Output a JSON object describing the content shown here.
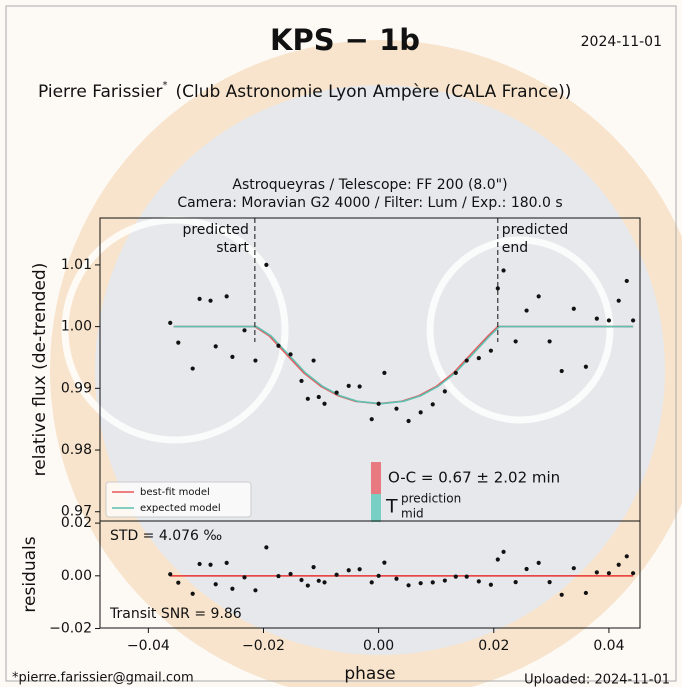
{
  "header": {
    "title": "KPS − 1b",
    "date": "2024-11-01",
    "author": "Pierre Farissier",
    "author_mark": "*",
    "affiliation": "(Club Astronomie Lyon Ampère (CALA France))",
    "observatory": "Astroqueyras / Telescope: FF 200 (8.0\")",
    "camera": "Camera: Moravian G2 4000 / Filter: Lum / Exp.: 180.0 s"
  },
  "chart_data": [
    {
      "type": "scatter",
      "ylabel": "relative flux (de-trended)",
      "color": "#111111",
      "xlim": [
        -0.0484,
        0.0454
      ],
      "ylim": [
        0.9685,
        1.0176
      ],
      "yticks": [
        0.97,
        0.98,
        0.99,
        {
          "value": 1.0,
          "label": "1.00"
        },
        1.01
      ],
      "x": [
        -0.0362,
        -0.0348,
        -0.0323,
        -0.0311,
        -0.0292,
        -0.0283,
        -0.0264,
        -0.0254,
        -0.0233,
        -0.0214,
        -0.0195,
        -0.0174,
        -0.0153,
        -0.0134,
        -0.0123,
        -0.0113,
        -0.0104,
        -0.0094,
        -0.0073,
        -0.0052,
        -0.0033,
        -0.0012,
        0.0,
        0.001,
        0.0031,
        0.0052,
        0.0073,
        0.0094,
        0.0115,
        0.0134,
        0.0153,
        0.0174,
        0.0195,
        0.0207,
        0.0217,
        0.0238,
        0.0257,
        0.0278,
        0.0297,
        0.0318,
        0.0339,
        0.036,
        0.0379,
        0.04,
        0.0417,
        0.0431,
        0.0442
      ],
      "values": [
        1.0006,
        0.9974,
        0.9932,
        1.0045,
        1.0042,
        0.9968,
        1.0049,
        0.9951,
        0.9994,
        0.9945,
        1.01,
        0.9969,
        0.9955,
        0.9912,
        0.9883,
        0.9945,
        0.9886,
        0.9875,
        0.9893,
        0.9904,
        0.9903,
        0.985,
        0.9875,
        0.9925,
        0.9867,
        0.9847,
        0.9861,
        0.9874,
        0.9895,
        0.9925,
        0.9945,
        0.9949,
        0.9961,
        1.0062,
        1.0091,
        0.9976,
        1.0026,
        1.0049,
        0.9976,
        0.9928,
        1.0029,
        0.9935,
        1.0013,
        1.001,
        1.0042,
        1.0074,
        1.001
      ],
      "series": [
        {
          "name": "best-fit model",
          "color": "#e8575a",
          "x": [
            -0.0356,
            -0.0215,
            -0.019,
            -0.016,
            -0.013,
            -0.01,
            -0.007,
            -0.004,
            0.0,
            0.004,
            0.007,
            0.01,
            0.013,
            0.016,
            0.019,
            0.0207,
            0.0442
          ],
          "values": [
            1.0,
            1.0,
            0.9985,
            0.9955,
            0.9925,
            0.9903,
            0.9888,
            0.9879,
            0.9875,
            0.9879,
            0.9888,
            0.9903,
            0.9925,
            0.9955,
            0.9985,
            1.0,
            1.0
          ]
        },
        {
          "name": "expected model",
          "color": "#5fbfb0",
          "x": [
            -0.0356,
            -0.0212,
            -0.0187,
            -0.0157,
            -0.0127,
            -0.0097,
            -0.0067,
            -0.0037,
            0.0003,
            0.0043,
            0.0073,
            0.0103,
            0.0133,
            0.0163,
            0.0193,
            0.021,
            0.0442
          ],
          "values": [
            1.0,
            1.0,
            0.9985,
            0.9955,
            0.9925,
            0.9903,
            0.9888,
            0.9879,
            0.9875,
            0.9879,
            0.9888,
            0.9903,
            0.9925,
            0.9955,
            0.9985,
            1.0,
            1.0
          ]
        }
      ],
      "predicted_start": {
        "value": -0.0215,
        "lines": [
          "predicted",
          "start"
        ]
      },
      "predicted_end": {
        "value": 0.0207,
        "lines": [
          "predicted",
          "end"
        ]
      },
      "oc_text": "O-C = 0.67 ± 2.02 min",
      "tmid": {
        "base": "T",
        "sup": "prediction",
        "sub": "mid"
      }
    },
    {
      "type": "scatter",
      "ylabel": "residuals",
      "xlabel": "phase",
      "color": "#111111",
      "zero_color": "#e83030",
      "xlim": [
        -0.0484,
        0.0454
      ],
      "ylim": [
        -0.0198,
        0.0208
      ],
      "xticks": [
        {
          "value": -0.04,
          "label": "−0.04"
        },
        {
          "value": -0.02,
          "label": "−0.02"
        },
        {
          "value": 0.0,
          "label": "0.00"
        },
        0.02,
        0.04
      ],
      "yticks": [
        {
          "value": -0.02,
          "label": "−0.02"
        },
        {
          "value": 0.0,
          "label": "0.00"
        },
        0.02
      ],
      "x": [
        -0.0362,
        -0.0348,
        -0.0323,
        -0.0311,
        -0.0292,
        -0.0283,
        -0.0264,
        -0.0254,
        -0.0233,
        -0.0214,
        -0.0195,
        -0.0174,
        -0.0153,
        -0.0134,
        -0.0123,
        -0.0113,
        -0.0104,
        -0.0094,
        -0.0073,
        -0.0052,
        -0.0033,
        -0.0012,
        0.0,
        0.001,
        0.0031,
        0.0052,
        0.0073,
        0.0094,
        0.0115,
        0.0134,
        0.0153,
        0.0174,
        0.0195,
        0.0207,
        0.0217,
        0.0238,
        0.0257,
        0.0278,
        0.0297,
        0.0318,
        0.0339,
        0.036,
        0.0379,
        0.04,
        0.0417,
        0.0431,
        0.0442
      ],
      "values": [
        0.0006,
        -0.0026,
        -0.0068,
        0.0045,
        0.0042,
        -0.0032,
        0.0049,
        -0.0049,
        -0.0006,
        -0.0055,
        0.0108,
        -0.0001,
        0.0007,
        -0.0016,
        -0.0037,
        0.0033,
        -0.0019,
        -0.0025,
        0.0004,
        0.0021,
        0.0025,
        -0.0025,
        0.0,
        0.005,
        -0.0011,
        -0.0036,
        -0.0028,
        -0.0025,
        -0.0018,
        -0.0003,
        -0.0003,
        -0.0021,
        -0.0034,
        0.0062,
        0.0091,
        -0.0024,
        0.0026,
        0.0049,
        -0.0024,
        -0.0072,
        0.0029,
        -0.0065,
        0.0013,
        0.001,
        0.0042,
        0.0074,
        0.001
      ],
      "std_text": "STD = 4.076 ‰",
      "snr_text": "Transit SNR = 9.86"
    }
  ],
  "footer": {
    "email": "*pierre.farissier@gmail.com",
    "uploaded": "Uploaded: 2024-11-01"
  }
}
